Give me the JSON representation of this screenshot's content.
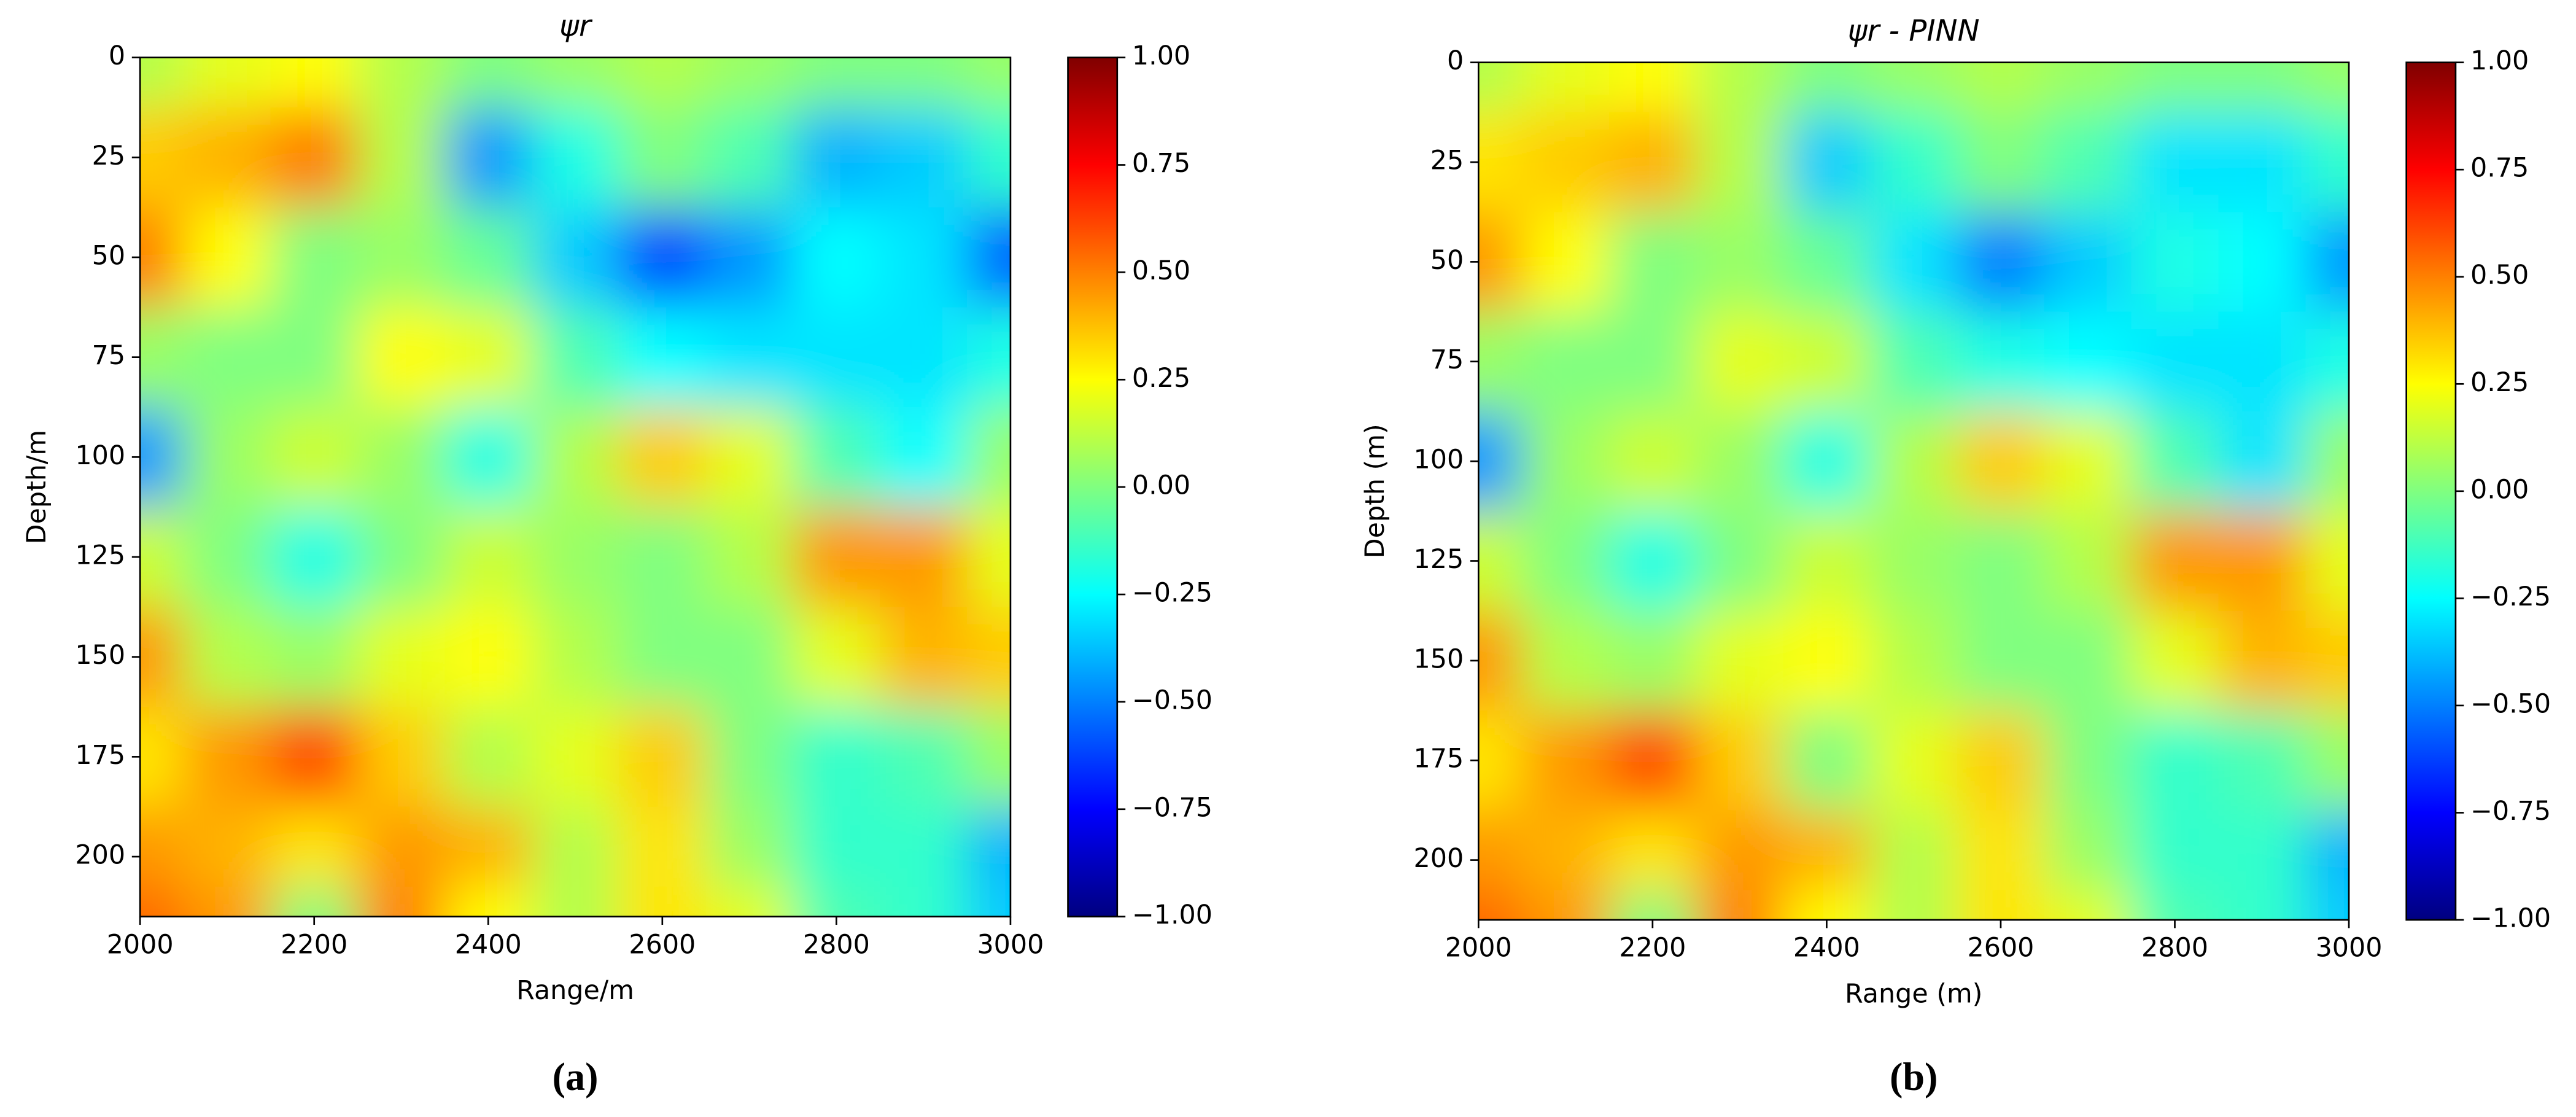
{
  "chart_data": [
    {
      "type": "heatmap",
      "title": "ψr",
      "xlabel": "Range/m",
      "ylabel": "Depth/m",
      "caption": "(a)",
      "cmap": "jet",
      "invert_y": true,
      "x": [
        2000,
        2100,
        2200,
        2300,
        2400,
        2500,
        2600,
        2700,
        2800,
        2900,
        3000
      ],
      "y": [
        0,
        25,
        50,
        75,
        100,
        125,
        150,
        175,
        200,
        215
      ],
      "values": [
        [
          0.1,
          0.2,
          0.25,
          0.1,
          0.0,
          0.05,
          0.1,
          0.05,
          0.0,
          0.0,
          0.05
        ],
        [
          0.35,
          0.4,
          0.5,
          0.1,
          -0.45,
          -0.2,
          0.0,
          -0.1,
          -0.4,
          -0.35,
          -0.15
        ],
        [
          0.5,
          0.25,
          0.0,
          0.05,
          -0.05,
          -0.35,
          -0.6,
          -0.45,
          -0.25,
          -0.3,
          -0.55
        ],
        [
          0.05,
          0.0,
          0.0,
          0.25,
          0.2,
          -0.1,
          -0.25,
          -0.3,
          -0.3,
          -0.3,
          -0.2
        ],
        [
          -0.45,
          0.05,
          0.15,
          0.05,
          -0.2,
          0.1,
          0.35,
          0.2,
          -0.1,
          -0.25,
          0.05
        ],
        [
          0.15,
          0.0,
          -0.2,
          0.0,
          0.15,
          0.05,
          0.0,
          0.1,
          0.45,
          0.45,
          0.2
        ],
        [
          0.45,
          0.1,
          0.05,
          0.2,
          0.25,
          0.1,
          0.0,
          0.0,
          0.2,
          0.4,
          0.35
        ],
        [
          0.3,
          0.45,
          0.6,
          0.35,
          0.1,
          0.2,
          0.35,
          0.0,
          -0.15,
          -0.1,
          0.05
        ],
        [
          0.45,
          0.4,
          0.3,
          0.45,
          0.4,
          0.1,
          0.3,
          0.05,
          -0.15,
          -0.15,
          -0.4
        ],
        [
          0.55,
          0.45,
          0.0,
          0.5,
          0.25,
          0.1,
          0.3,
          0.2,
          -0.1,
          -0.15,
          -0.35
        ]
      ],
      "xlim": [
        2000,
        3000
      ],
      "ylim": [
        0,
        215
      ],
      "xticks": [
        2000,
        2200,
        2400,
        2600,
        2800,
        3000
      ],
      "yticks": [
        0,
        25,
        50,
        75,
        100,
        125,
        150,
        175,
        200
      ],
      "colorbar_lim": [
        -1,
        1
      ],
      "colorbar_ticks": [
        {
          "value": -1,
          "label": "−1.00"
        },
        {
          "value": -0.75,
          "label": "−0.75"
        },
        {
          "value": -0.5,
          "label": "−0.50"
        },
        {
          "value": -0.25,
          "label": "−0.25"
        },
        {
          "value": 0,
          "label": "0.00"
        },
        {
          "value": 0.25,
          "label": "0.25"
        },
        {
          "value": 0.5,
          "label": "0.50"
        },
        {
          "value": 0.75,
          "label": "0.75"
        },
        {
          "value": 1,
          "label": "1.00"
        }
      ]
    },
    {
      "type": "heatmap",
      "title": "ψr - PINN",
      "xlabel": "Range (m)",
      "ylabel": "Depth (m)",
      "caption": "(b)",
      "cmap": "jet",
      "invert_y": true,
      "x": [
        2000,
        2100,
        2200,
        2300,
        2400,
        2500,
        2600,
        2700,
        2800,
        2900,
        3000
      ],
      "y": [
        0,
        25,
        50,
        75,
        100,
        125,
        150,
        175,
        200,
        215
      ],
      "values": [
        [
          0.1,
          0.2,
          0.25,
          0.1,
          0.0,
          0.05,
          0.1,
          0.05,
          0.0,
          0.0,
          0.05
        ],
        [
          0.3,
          0.35,
          0.4,
          0.1,
          -0.35,
          -0.15,
          0.0,
          -0.1,
          -0.3,
          -0.3,
          -0.15
        ],
        [
          0.45,
          0.25,
          0.0,
          0.05,
          -0.05,
          -0.3,
          -0.5,
          -0.35,
          -0.2,
          -0.25,
          -0.45
        ],
        [
          0.05,
          0.0,
          0.0,
          0.2,
          0.15,
          -0.1,
          -0.2,
          -0.25,
          -0.3,
          -0.3,
          -0.2
        ],
        [
          -0.45,
          0.05,
          0.15,
          0.05,
          -0.2,
          0.1,
          0.35,
          0.2,
          -0.1,
          -0.3,
          0.05
        ],
        [
          0.15,
          0.0,
          -0.2,
          0.0,
          0.15,
          0.05,
          0.0,
          0.1,
          0.45,
          0.45,
          0.2
        ],
        [
          0.45,
          0.1,
          0.05,
          0.2,
          0.25,
          0.1,
          0.0,
          0.0,
          0.2,
          0.4,
          0.35
        ],
        [
          0.3,
          0.45,
          0.6,
          0.35,
          0.0,
          0.2,
          0.35,
          0.0,
          -0.15,
          -0.1,
          0.05
        ],
        [
          0.45,
          0.4,
          0.3,
          0.45,
          0.4,
          0.1,
          0.3,
          0.05,
          -0.15,
          -0.15,
          -0.4
        ],
        [
          0.55,
          0.45,
          0.0,
          0.5,
          0.25,
          0.1,
          0.3,
          0.2,
          -0.1,
          -0.15,
          -0.35
        ]
      ],
      "xlim": [
        2000,
        3000
      ],
      "ylim": [
        0,
        215
      ],
      "xticks": [
        2000,
        2200,
        2400,
        2600,
        2800,
        3000
      ],
      "yticks": [
        0,
        25,
        50,
        75,
        100,
        125,
        150,
        175,
        200
      ],
      "colorbar_lim": [
        -1,
        1
      ],
      "colorbar_ticks": [
        {
          "value": -1,
          "label": "−1.00"
        },
        {
          "value": -0.75,
          "label": "−0.75"
        },
        {
          "value": -0.5,
          "label": "−0.50"
        },
        {
          "value": -0.25,
          "label": "−0.25"
        },
        {
          "value": 0,
          "label": "0.00"
        },
        {
          "value": 0.25,
          "label": "0.25"
        },
        {
          "value": 0.5,
          "label": "0.50"
        },
        {
          "value": 0.75,
          "label": "0.75"
        },
        {
          "value": 1,
          "label": "1.00"
        }
      ]
    }
  ]
}
